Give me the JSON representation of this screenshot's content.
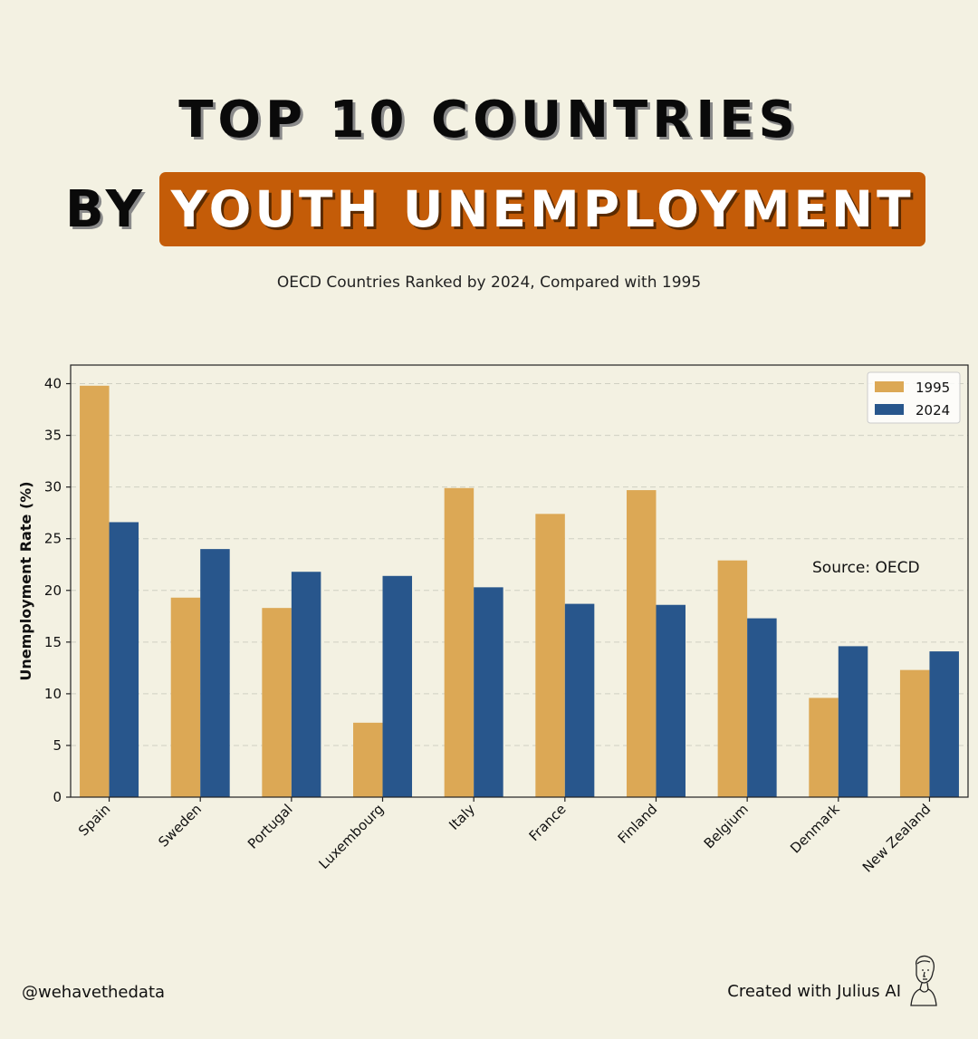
{
  "header": {
    "line1": "TOP 10 COUNTRIES",
    "line2_prefix": "BY",
    "line2_highlight": "YOUTH UNEMPLOYMENT",
    "subtitle": "OECD Countries Ranked by 2024, Compared with 1995"
  },
  "chart_data": {
    "type": "bar",
    "title": "",
    "xlabel": "",
    "ylabel": "Unemployment Rate (%)",
    "ylim": [
      0,
      41.8
    ],
    "yticks": [
      0,
      5,
      10,
      15,
      20,
      25,
      30,
      35,
      40
    ],
    "grid": true,
    "legend_position": "top-right",
    "categories": [
      "Spain",
      "Sweden",
      "Portugal",
      "Luxembourg",
      "Italy",
      "France",
      "Finland",
      "Belgium",
      "Denmark",
      "New Zealand"
    ],
    "series": [
      {
        "name": "1995",
        "color": "#dca855",
        "values": [
          39.8,
          19.3,
          18.3,
          7.2,
          29.9,
          27.4,
          29.7,
          22.9,
          9.6,
          12.3
        ]
      },
      {
        "name": "2024",
        "color": "#28568c",
        "values": [
          26.6,
          24.0,
          21.8,
          21.4,
          20.3,
          18.7,
          18.6,
          17.3,
          14.6,
          14.1
        ]
      }
    ],
    "annotation": "Source: OECD"
  },
  "footer": {
    "handle": "@wehavethedata",
    "credit": "Created with Julius AI",
    "credit_icon": "bust-icon"
  }
}
